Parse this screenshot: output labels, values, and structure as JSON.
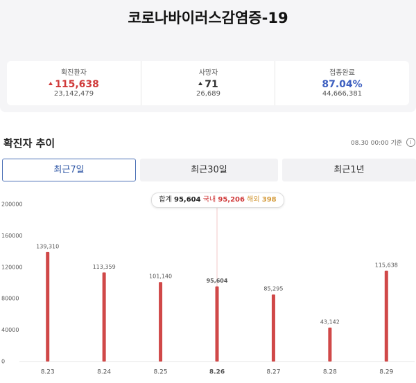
{
  "header": {
    "title": "코로나바이러스감염증-19"
  },
  "stats": [
    {
      "label": "확진환자",
      "value": "115,638",
      "total": "23,142,479"
    },
    {
      "label": "사망자",
      "value": "71",
      "total": "26,689"
    },
    {
      "label": "접종완료",
      "value": "87.04%",
      "total": "44,666,381"
    }
  ],
  "section": {
    "title": "확진자 추이",
    "as_of": "08.30 00:00 기준"
  },
  "tabs": [
    "최근7일",
    "최근30일",
    "최근1년"
  ],
  "tooltip": {
    "total_label": "합계",
    "total": "95,604",
    "domestic_label": "국내",
    "domestic": "95,206",
    "overseas_label": "해외",
    "overseas": "398"
  },
  "chart_data": {
    "type": "bar",
    "categories": [
      "8.23",
      "8.24",
      "8.25",
      "8.26",
      "8.27",
      "8.28",
      "8.29"
    ],
    "values": [
      139310,
      113359,
      101140,
      95604,
      85295,
      43142,
      115638
    ],
    "value_labels": [
      "139,310",
      "113,359",
      "101,140",
      "95,604",
      "85,295",
      "43,142",
      "115,638"
    ],
    "color": "#d04848",
    "ylim": [
      0,
      200000
    ],
    "yticks": [
      0,
      40000,
      80000,
      120000,
      160000,
      200000
    ]
  }
}
